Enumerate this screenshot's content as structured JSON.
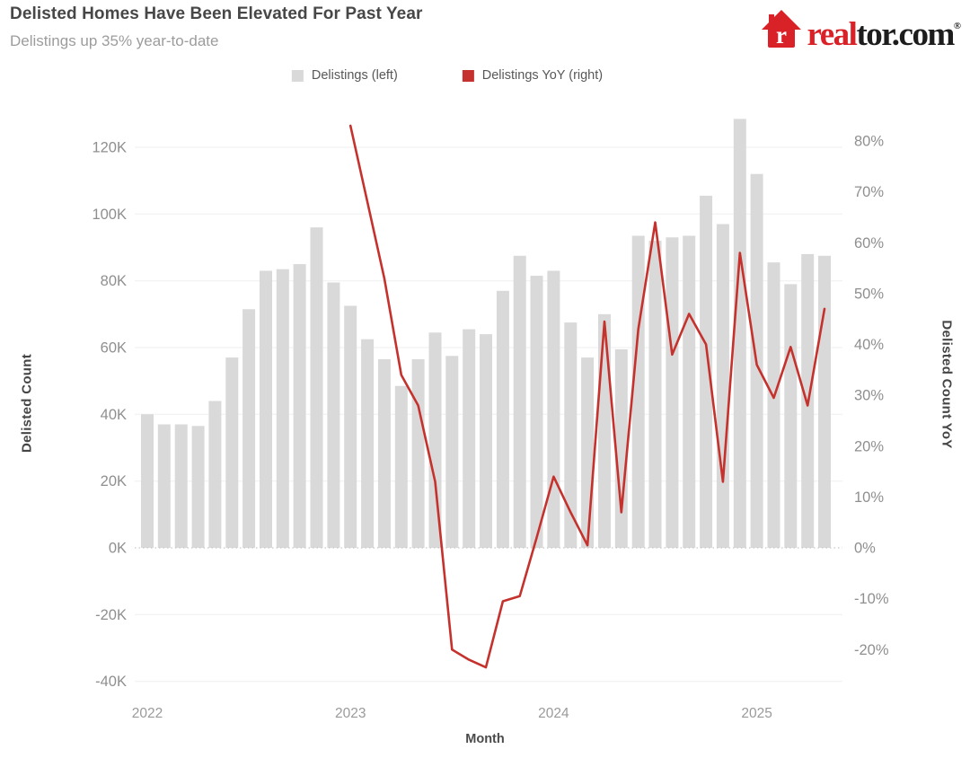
{
  "header": {
    "title": "Delisted Homes Have Been Elevated For Past Year",
    "subtitle": "Delistings up 35% year-to-date"
  },
  "logo": {
    "brand_red": "real",
    "brand_dark": "tor.com",
    "registered": "®",
    "house_color": "#d92228",
    "house_letter": "r"
  },
  "legend": [
    {
      "label": "Delistings (left)",
      "color": "#d9d9d9"
    },
    {
      "label": "Delistings YoY (right)",
      "color": "#c5322d"
    }
  ],
  "chart_data": {
    "type": "combo_bar_line",
    "months": [
      "2022-01",
      "2022-02",
      "2022-03",
      "2022-04",
      "2022-05",
      "2022-06",
      "2022-07",
      "2022-08",
      "2022-09",
      "2022-10",
      "2022-11",
      "2022-12",
      "2023-01",
      "2023-02",
      "2023-03",
      "2023-04",
      "2023-05",
      "2023-06",
      "2023-07",
      "2023-08",
      "2023-09",
      "2023-10",
      "2023-11",
      "2023-12",
      "2024-01",
      "2024-02",
      "2024-03",
      "2024-04",
      "2024-05",
      "2024-06",
      "2024-07",
      "2024-08",
      "2024-09",
      "2024-10",
      "2024-11",
      "2024-12",
      "2025-01",
      "2025-02",
      "2025-03",
      "2025-04",
      "2025-05"
    ],
    "series": [
      {
        "name": "Delistings (left)",
        "type": "bar",
        "axis": "left",
        "unit": "thousands of homes",
        "color": "#d9d9d9",
        "values": [
          40,
          37,
          37,
          36.5,
          44,
          57,
          71.5,
          83,
          83.5,
          85,
          96,
          79.5,
          72.5,
          62.5,
          56.5,
          48.5,
          56.5,
          64.5,
          57.5,
          65.5,
          64,
          77,
          87.5,
          81.5,
          83,
          67.5,
          57,
          70,
          59.5,
          93.5,
          92,
          93,
          93.5,
          105.5,
          97,
          128.5,
          112,
          85.5,
          79,
          88,
          87.5
        ]
      },
      {
        "name": "Delistings YoY (right)",
        "type": "line",
        "axis": "right",
        "unit": "percent",
        "color": "#c5322d",
        "x": [
          "2023-01",
          "2023-02",
          "2023-03",
          "2023-04",
          "2023-05",
          "2023-06",
          "2023-07",
          "2023-08",
          "2023-09",
          "2023-10",
          "2023-11",
          "2023-12",
          "2024-01",
          "2024-02",
          "2024-03",
          "2024-04",
          "2024-05",
          "2024-06",
          "2024-07",
          "2024-08",
          "2024-09",
          "2024-10",
          "2024-11",
          "2024-12",
          "2025-01",
          "2025-02",
          "2025-03",
          "2025-04",
          "2025-05"
        ],
        "values": [
          83,
          68,
          53,
          34,
          28,
          13,
          -20,
          -22,
          -23.5,
          -10.5,
          -9.5,
          2,
          14,
          7,
          0.5,
          44.5,
          7,
          43,
          64,
          38,
          46,
          40,
          13,
          58,
          36,
          29.5,
          39.5,
          28,
          47
        ]
      }
    ],
    "x_axis": {
      "label": "Month",
      "ticks": [
        {
          "label": "2022",
          "month_index": 0
        },
        {
          "label": "2023",
          "month_index": 12
        },
        {
          "label": "2024",
          "month_index": 24
        },
        {
          "label": "2025",
          "month_index": 36
        }
      ]
    },
    "left_axis": {
      "label": "Delisted Count",
      "tick_values": [
        120,
        100,
        80,
        60,
        40,
        20,
        0,
        -20,
        -40
      ],
      "tick_labels": [
        "120K",
        "100K",
        "80K",
        "60K",
        "40K",
        "20K",
        "0K",
        "-20K",
        "-40K"
      ],
      "min": -40,
      "max": 120,
      "unit": "K"
    },
    "right_axis": {
      "label": "Delisted Count YoY",
      "tick_values": [
        80,
        70,
        60,
        50,
        40,
        30,
        20,
        10,
        0,
        -10,
        -20
      ],
      "tick_labels": [
        "80%",
        "70%",
        "60%",
        "50%",
        "40%",
        "30%",
        "20%",
        "10%",
        "0%",
        "-10%",
        "-20%"
      ],
      "min": -20,
      "max": 80,
      "unit": "%"
    },
    "grid": {
      "color": "#efefef",
      "zero_line_color": "#c8c8c8",
      "zero_line_style": "dotted"
    }
  }
}
